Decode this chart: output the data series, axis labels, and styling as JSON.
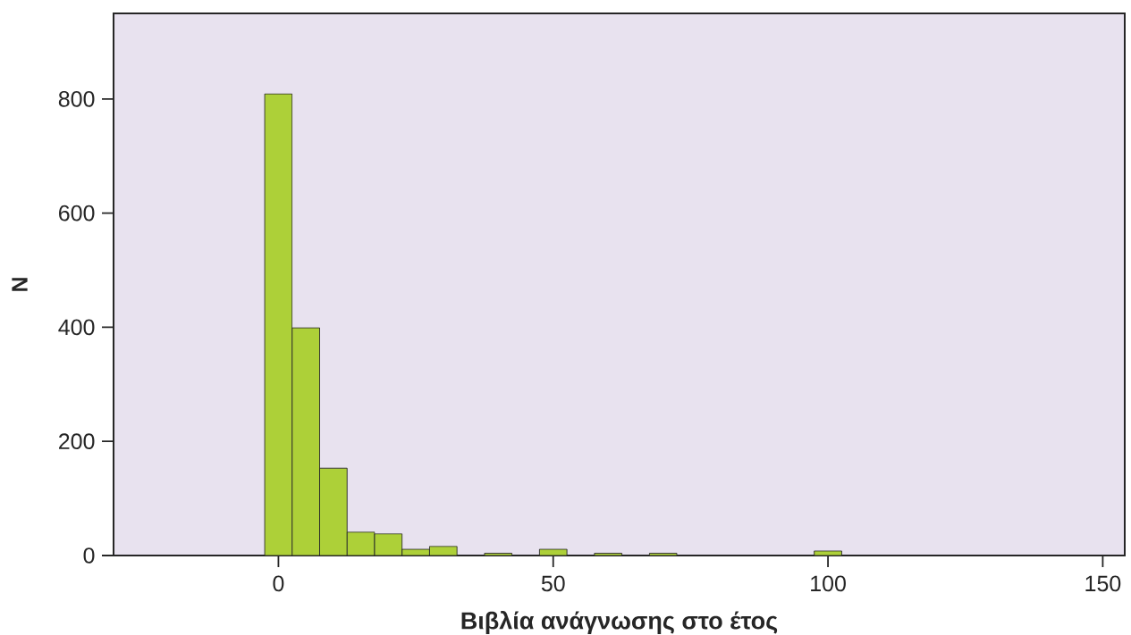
{
  "chart_data": {
    "type": "histogram",
    "xlabel": "Βιβλία ανάγνωσης στο έτος",
    "ylabel": "N",
    "bins": [
      -2.5,
      2.5,
      7.5,
      12.5,
      17.5,
      22.5,
      27.5,
      32.5,
      37.5,
      42.5,
      47.5,
      52.5,
      57.5,
      62.5,
      67.5,
      72.5,
      77.5,
      82.5,
      87.5,
      92.5,
      97.5,
      102.5
    ],
    "values": [
      809,
      399,
      153,
      41,
      38,
      11,
      16,
      0,
      4,
      0,
      11,
      0,
      4,
      0,
      4,
      0,
      0,
      0,
      0,
      0,
      8
    ],
    "color": "#add038",
    "xlim": [
      -30,
      154
    ],
    "ylim": [
      0,
      950
    ],
    "xticks": [
      0,
      50,
      100,
      150
    ],
    "yticks": [
      0,
      200,
      400,
      600,
      800
    ],
    "grid": false
  }
}
